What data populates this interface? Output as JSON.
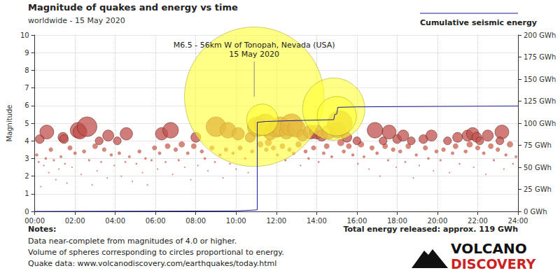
{
  "chart_data": {
    "type": "scatter",
    "title": "Magnitude of quakes and energy vs time",
    "subtitle": "worldwide - 15 May 2020",
    "y_label": "Magnitude",
    "xlim": [
      0,
      24
    ],
    "xticks": [
      {
        "value": 0,
        "label": "00:00"
      },
      {
        "value": 2,
        "label": "02:00"
      },
      {
        "value": 4,
        "label": "04:00"
      },
      {
        "value": 6,
        "label": "06:00"
      },
      {
        "value": 8,
        "label": "08:00"
      },
      {
        "value": 10,
        "label": "10:00"
      },
      {
        "value": 12,
        "label": "12:00"
      },
      {
        "value": 14,
        "label": "14:00"
      },
      {
        "value": 16,
        "label": "16:00"
      },
      {
        "value": 18,
        "label": "18:00"
      },
      {
        "value": 20,
        "label": "20:00"
      },
      {
        "value": 22,
        "label": "22:00"
      },
      {
        "value": 24,
        "label": "24:00"
      }
    ],
    "ylim": [
      0,
      10
    ],
    "yticks": [
      0,
      1,
      2,
      3,
      4,
      5,
      6,
      7,
      8,
      9,
      10
    ],
    "y2lim": [
      0,
      200
    ],
    "y2ticks": [
      {
        "value": 0,
        "label": "0 GWh"
      },
      {
        "value": 25,
        "label": "25 GWh"
      },
      {
        "value": 50,
        "label": "50 GWh"
      },
      {
        "value": 75,
        "label": "75 GWh"
      },
      {
        "value": 100,
        "label": "100 GWh"
      },
      {
        "value": 125,
        "label": "125 GWh"
      },
      {
        "value": 150,
        "label": "150 GWh"
      },
      {
        "value": 175,
        "label": "175 GWh"
      },
      {
        "value": 200,
        "label": "200 GWh"
      }
    ],
    "grid": true,
    "legend": "upper right",
    "series": [
      {
        "type": "scatter",
        "marker": "circle",
        "color": "#d27b6e",
        "x": [
          0.1,
          0.2,
          0.3,
          0.45,
          0.55,
          0.7,
          0.8,
          0.95,
          1.05,
          1.2,
          1.3,
          1.5,
          1.6,
          1.75,
          1.85,
          2.0,
          2.3,
          2.45,
          2.7,
          2.85,
          3.0,
          3.1,
          3.3,
          3.45,
          3.6,
          3.8,
          3.95,
          4.2,
          4.3,
          4.5,
          4.7,
          4.85,
          5.05,
          5.2,
          5.35,
          5.5,
          5.6,
          5.8,
          5.95,
          6.1,
          6.2,
          6.5,
          6.6,
          6.85,
          7.0,
          7.15,
          7.3,
          7.45,
          7.6,
          7.75,
          7.9,
          8.1,
          8.3,
          8.45,
          8.6,
          8.8,
          8.95,
          9.2,
          9.35,
          9.5,
          9.7,
          9.85,
          10.0,
          10.2,
          10.45,
          10.6,
          10.8,
          11.2,
          11.5,
          11.6,
          11.85,
          12.05,
          12.3,
          12.45,
          12.65,
          12.85,
          13.1,
          13.2,
          13.45,
          13.6,
          13.85,
          14.1,
          14.35,
          14.5,
          14.75,
          15.2,
          15.35,
          15.6,
          15.8,
          16.05,
          16.2,
          16.35,
          16.6,
          16.75,
          17.0,
          17.15,
          17.4,
          17.55,
          17.8,
          17.95,
          18.15,
          18.4,
          18.55,
          18.8,
          18.95,
          19.1,
          19.4,
          19.55,
          19.8,
          19.95,
          20.15,
          20.3,
          20.6,
          20.75,
          20.9,
          21.1,
          21.4,
          21.6,
          21.8,
          22.0,
          22.3,
          22.4,
          22.65,
          22.8,
          23.0,
          23.3,
          23.4,
          23.6,
          23.75,
          23.9
        ],
        "values": [
          3.2,
          2.8,
          1.4,
          2.6,
          3.0,
          2.2,
          3.5,
          2.9,
          1.8,
          2.4,
          3.1,
          2.7,
          1.6,
          3.6,
          2.5,
          3.3,
          2.1,
          3.4,
          2.9,
          1.5,
          3.7,
          2.3,
          2.8,
          3.5,
          1.9,
          3.2,
          2.6,
          3.3,
          2.0,
          2.8,
          3.1,
          1.7,
          2.7,
          3.4,
          2.2,
          3.0,
          1.5,
          2.9,
          3.6,
          2.4,
          3.3,
          2.8,
          3.7,
          2.1,
          3.5,
          2.9,
          3.8,
          2.5,
          3.3,
          1.8,
          3.7,
          2.6,
          3.4,
          3.0,
          2.3,
          3.6,
          2.8,
          3.2,
          1.9,
          3.5,
          2.7,
          3.3,
          2.4,
          3.6,
          3.0,
          2.2,
          3.4,
          3.8,
          3.5,
          3.9,
          3.6,
          3.2,
          3.7,
          2.9,
          3.5,
          3.3,
          3.8,
          2.6,
          3.4,
          3.0,
          3.6,
          2.8,
          3.3,
          3.7,
          3.1,
          3.9,
          3.4,
          3.7,
          3.2,
          2.7,
          3.8,
          3.1,
          2.4,
          3.6,
          3.3,
          2.0,
          3.7,
          2.9,
          3.5,
          2.5,
          3.4,
          2.8,
          3.7,
          1.9,
          3.2,
          2.6,
          3.6,
          3.0,
          2.3,
          3.4,
          2.9,
          3.5,
          2.2,
          3.3,
          3.7,
          2.7,
          3.4,
          3.8,
          2.5,
          3.6,
          3.3,
          2.1,
          3.7,
          2.9,
          3.5,
          2.4,
          3.2,
          3.8,
          2.7,
          3.1
        ]
      },
      {
        "type": "scatter",
        "marker": "circle",
        "color": "#c0504d",
        "x": [
          0.25,
          0.6,
          1.4,
          1.45,
          2.15,
          2.25,
          2.6,
          3.2,
          3.65,
          4.1,
          4.55,
          6.3,
          6.75,
          8.0,
          9.0,
          9.6,
          10.1,
          10.7,
          11.05,
          11.45,
          11.7,
          12.0,
          12.2,
          12.5,
          12.75,
          13.0,
          13.3,
          13.7,
          14.0,
          14.25,
          14.6,
          15.05,
          15.15,
          15.5,
          16.0,
          16.9,
          17.3,
          17.6,
          18.0,
          18.3,
          18.7,
          19.3,
          19.7,
          20.5,
          21.0,
          21.5,
          21.75,
          21.95,
          22.1,
          22.5,
          23.2,
          23.1
        ],
        "values": [
          4.1,
          4.5,
          4.2,
          4.1,
          4.6,
          4.5,
          4.8,
          4.0,
          4.3,
          4.0,
          4.4,
          4.4,
          4.6,
          4.2,
          4.8,
          4.6,
          4.4,
          4.2,
          4.8,
          4.9,
          4.4,
          4.7,
          4.8,
          4.5,
          4.9,
          4.7,
          4.3,
          4.5,
          4.5,
          4.3,
          4.5,
          4.6,
          5.0,
          4.2,
          4.0,
          4.6,
          4.0,
          4.5,
          4.1,
          4.3,
          4.0,
          4.1,
          4.3,
          4.0,
          4.2,
          4.3,
          4.4,
          4.2,
          4.0,
          4.3,
          4.5,
          4.0
        ]
      },
      {
        "type": "scatter",
        "marker": "circle",
        "color": "#ffff33",
        "x": [
          10.9,
          11.3,
          14.85,
          15.0
        ],
        "values": [
          6.5,
          5.2,
          5.8,
          5.4
        ]
      },
      {
        "type": "line",
        "name": "Cumulative seismic energy",
        "axis": "y2",
        "color": "#1a1a9e",
        "x": [
          0,
          10.0,
          10.9,
          11.05,
          11.05,
          11.5,
          13.0,
          14.85,
          14.9,
          15.0,
          15.05,
          16.0,
          20.0,
          24.0
        ],
        "values": [
          0,
          0.5,
          1.5,
          1.8,
          101,
          102,
          103,
          104,
          110,
          110.5,
          118,
          118.5,
          119,
          119.5
        ]
      }
    ],
    "annotation": {
      "lines": [
        "M6.5 - 56km W of Tonopah, Nevada (USA)",
        "15 May 2020"
      ],
      "x": 10.9,
      "y": 6.5
    },
    "total_energy": "Total energy released: approx. 119 GWh",
    "notes": {
      "title": "Notes:",
      "lines": [
        "Data near-complete from magnitudes of 4.0 or higher.",
        "Volume of spheres corresponding to circles proportional to energy.",
        "Quake data: www.volcanodiscovery.com/earthquakes/today.html"
      ]
    },
    "brand": [
      "VOLCANO",
      "DISCOVERY"
    ]
  }
}
